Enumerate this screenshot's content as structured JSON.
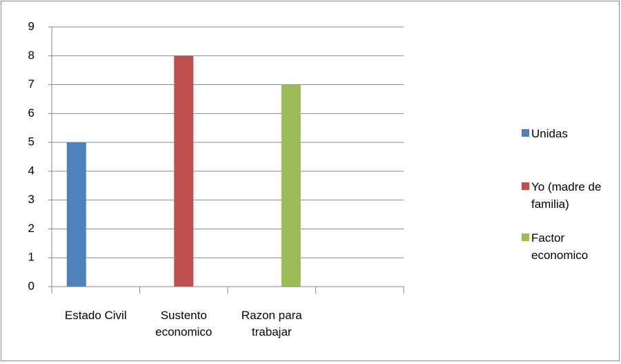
{
  "chart_data": {
    "type": "bar",
    "categories": [
      "Estado Civil",
      "Sustento economico",
      "Razon para trabajar",
      null
    ],
    "series": [
      {
        "name": "Unidas",
        "color": "#4f81bd",
        "values": [
          5,
          null,
          null,
          null
        ]
      },
      {
        "name": "Yo (madre de familia)",
        "color": "#c0504d",
        "values": [
          null,
          8,
          null,
          null
        ]
      },
      {
        "name": "Factor economico",
        "color": "#9bbb59",
        "values": [
          null,
          null,
          7,
          null
        ]
      }
    ],
    "ylim": [
      0,
      9
    ],
    "yticks": [
      0,
      1,
      2,
      3,
      4,
      5,
      6,
      7,
      8,
      9
    ],
    "grid": true,
    "legend": "right"
  }
}
